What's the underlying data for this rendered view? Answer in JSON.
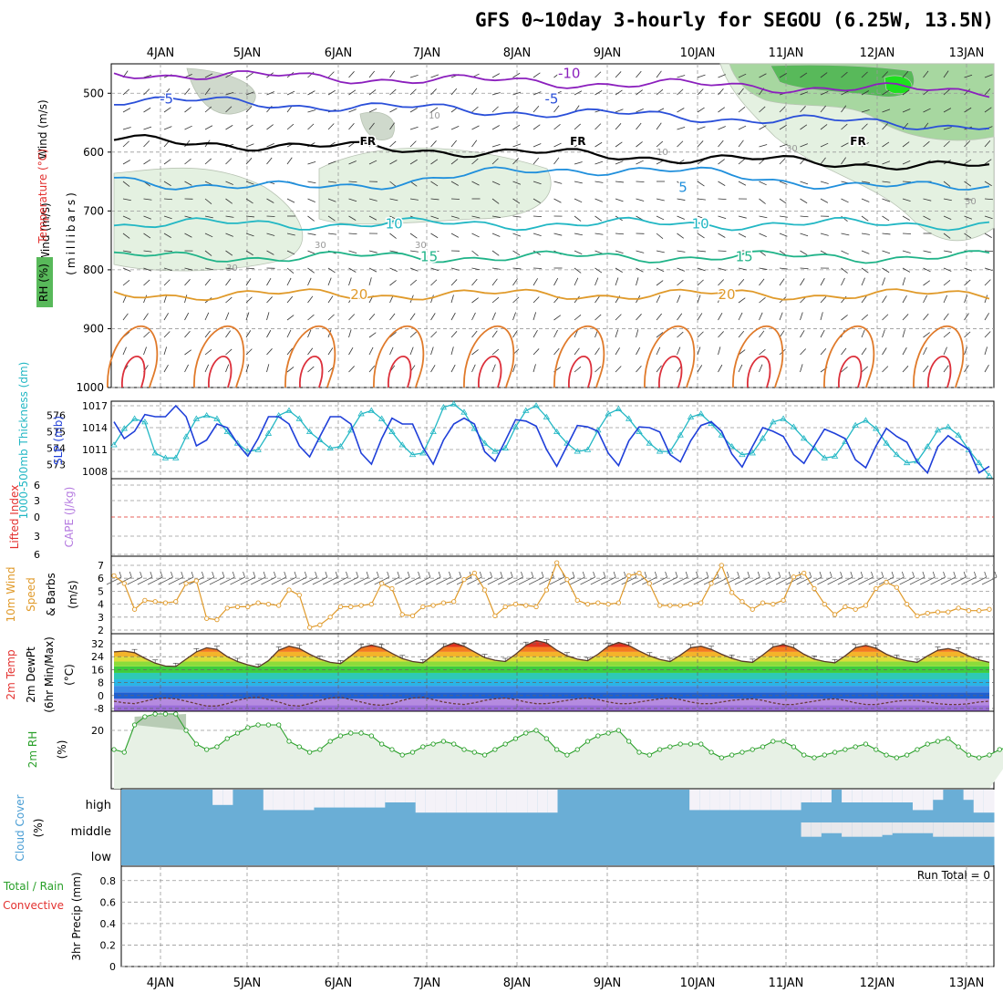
{
  "title": "GFS 0~10day 3-hourly for SEGOU (6.25W, 13.5N)",
  "colors": {
    "temp_purple": "#8b1fbd",
    "temp_blue": "#2a4fd9",
    "temp_sky": "#1f8fdc",
    "temp_cyan": "#22b7c4",
    "temp_teal": "#1fb388",
    "temp_orange": "#e09a2a",
    "temp_dark_orange": "#e07a2a",
    "temp_red": "#dc2f3a",
    "freezing": "#000000",
    "rh_light": "#e4f1e1",
    "rh_mid": "#a7d7a0",
    "rh_dark": "#58b95a",
    "rh_bright": "#1ee01e",
    "slp": "#1f3fd9",
    "thickness": "#22b7c4",
    "wind_speed": "#e09a2a",
    "rh2m": "#2aa02a",
    "cloud": "#6aaed6",
    "cloud_clear": "#f4f2f8",
    "grid": "#999999",
    "lifted_zero": "#e0302a"
  },
  "chart_data": [
    {
      "type": "contour",
      "name": "upper_air",
      "x_ticks": [
        "4JAN",
        "5JAN",
        "6JAN",
        "7JAN",
        "8JAN",
        "9JAN",
        "10JAN",
        "11JAN",
        "12JAN",
        "13JAN"
      ],
      "ylabel_parts": [
        "Wind (m/s)",
        "Temperature (°C)",
        "(millibars)"
      ],
      "rh_legend_label": "RH (%)",
      "y_ticks": [
        500,
        600,
        700,
        800,
        900,
        1000
      ],
      "ylim": [
        450,
        1000
      ],
      "temperature_contours": [
        {
          "label": "-10",
          "level_mb": 466,
          "label_day": 5.2,
          "color": "temp_purple"
        },
        {
          "label": "-5",
          "level_mb": 510,
          "label_day": [
            0.6,
            5.0
          ],
          "color": "temp_blue"
        },
        {
          "label": "FR",
          "level_mb": 580,
          "label_day": [
            2.9,
            5.3,
            8.5
          ],
          "color": "freezing"
        },
        {
          "label": "5",
          "level_mb": 660,
          "label_day": [
            6.5
          ],
          "color": "temp_sky"
        },
        {
          "label": "10",
          "level_mb": 722,
          "label_day": [
            3.2,
            6.7
          ],
          "color": "temp_cyan"
        },
        {
          "label": "15",
          "level_mb": 778,
          "label_day": [
            3.6,
            7.2
          ],
          "color": "temp_teal"
        },
        {
          "label": "20",
          "level_mb": 842,
          "label_day": [
            2.8,
            7.0
          ],
          "color": "temp_orange"
        }
      ],
      "rh_labels": [
        "10",
        "10",
        "30",
        "30",
        "30",
        "30",
        "30"
      ]
    },
    {
      "type": "line",
      "name": "slp_thickness",
      "ylabel": "1000-500mb Thickness (dm)",
      "ylabel2": "SLP (mb)",
      "y_ticks_left": [
        573,
        574,
        575,
        576
      ],
      "y_ticks_right": [
        1008,
        1011,
        1014,
        1017
      ],
      "series": [
        {
          "name": "SLP",
          "unit": "mb",
          "values": [
            1014.8,
            1012.5,
            1013.5,
            1015.8,
            1015.5,
            1015.5,
            1017,
            1015.5,
            1011.5,
            1012.3,
            1014.5,
            1014,
            1011.8,
            1010.1,
            1012.5,
            1015.5,
            1015.5,
            1014.5,
            1011.5,
            1010,
            1012.8,
            1015.5,
            1015.5,
            1014.5,
            1010.5,
            1009,
            1012.5,
            1015.3,
            1014.5,
            1014.5,
            1011.3,
            1009,
            1012.3,
            1014.5,
            1015.3,
            1014.5,
            1010.7,
            1009.4,
            1012.2,
            1015.1,
            1014.9,
            1014.2,
            1011,
            1008.7,
            1011.5,
            1014.3,
            1014.1,
            1013.5,
            1010.5,
            1008.8,
            1012.2,
            1014.1,
            1014,
            1013.4,
            1010.3,
            1009.3,
            1012.2,
            1014.3,
            1014.8,
            1013.5,
            1010.4,
            1008.6,
            1011.4,
            1014,
            1013.5,
            1012.8,
            1010.3,
            1009.1,
            1011.5,
            1013.8,
            1013.2,
            1012.5,
            1009.6,
            1008.5,
            1011.5,
            1013.9,
            1012.8,
            1012,
            1009.3,
            1007.8,
            1011.4,
            1012.9,
            1011.9,
            1011,
            1007.8,
            1008.7
          ]
        },
        {
          "name": "1000-500mb Thickness",
          "unit": "dm",
          "values": [
            574.2,
            575.2,
            575.8,
            575.6,
            573.7,
            573.4,
            573.4,
            574.7,
            575.8,
            576,
            575.8,
            575,
            574.3,
            573.8,
            573.9,
            574.9,
            576,
            576.3,
            575.8,
            575,
            574.5,
            574,
            574.1,
            575.1,
            576.1,
            576.3,
            575.8,
            575,
            574.2,
            573.6,
            573.7,
            575,
            576.5,
            576.7,
            576.2,
            575.2,
            574.3,
            573.8,
            574,
            575.3,
            576.3,
            576.6,
            575.9,
            575,
            574.3,
            573.8,
            573.9,
            575.1,
            576.1,
            576.4,
            575.8,
            575,
            574.3,
            573.8,
            573.8,
            574.8,
            575.9,
            576.1,
            575.5,
            574.8,
            574.1,
            573.6,
            573.7,
            574.6,
            575.6,
            575.8,
            575.3,
            574.6,
            574,
            573.4,
            573.5,
            574.4,
            575.4,
            575.7,
            575.2,
            574.3,
            573.6,
            573.1,
            573.2,
            574.1,
            575.1,
            575.3,
            574.8,
            573.9,
            573.1,
            572.3
          ]
        }
      ]
    },
    {
      "type": "line",
      "name": "cape_li",
      "ylabel_parts": [
        "Lifted Index",
        "CAPE (J/kg)"
      ],
      "y_ticks": [
        "6",
        "3",
        "0",
        "3",
        "6"
      ],
      "values_li": [],
      "values_cape": []
    },
    {
      "type": "line",
      "name": "wind10m",
      "ylabel_parts": [
        "10m Wind",
        "Speed",
        "& Barbs",
        "(m/s)"
      ],
      "y_ticks": [
        2,
        3,
        4,
        5,
        6,
        7
      ],
      "values": [
        6.2,
        5.6,
        3.6,
        4.3,
        4.2,
        4.1,
        4.2,
        5.6,
        5.8,
        2.9,
        2.8,
        3.7,
        3.8,
        3.8,
        4.1,
        4,
        3.9,
        5.1,
        4.7,
        2.2,
        2.4,
        3,
        3.8,
        3.8,
        3.9,
        4,
        5.6,
        5.2,
        3.2,
        3.1,
        3.8,
        3.9,
        4.1,
        4.2,
        5.9,
        6.4,
        5.1,
        3.1,
        3.8,
        4,
        3.9,
        3.8,
        5.1,
        7.2,
        5.9,
        4.3,
        4,
        4.1,
        4,
        4.1,
        6.2,
        6.4,
        5.6,
        3.9,
        3.9,
        3.9,
        4,
        4.1,
        5.6,
        7,
        4.9,
        4.2,
        3.6,
        4.1,
        4,
        4.3,
        6.1,
        6.4,
        5.2,
        4,
        3.2,
        3.8,
        3.6,
        3.9,
        5.2,
        5.7,
        5.3,
        4,
        3.1,
        3.3,
        3.4,
        3.4,
        3.7,
        3.5,
        3.5,
        3.6
      ]
    },
    {
      "type": "area",
      "name": "temp2m",
      "ylabel_parts": [
        "2m Temp",
        "2m DewPt",
        "(6hr Min/Max)",
        "(°C)"
      ],
      "y_ticks": [
        "32",
        "24",
        "16",
        "8",
        "0",
        "-8"
      ],
      "temp_values": [
        27,
        27.5,
        26.5,
        23,
        20,
        18.2,
        18,
        22.5,
        27,
        29.5,
        28.5,
        24,
        21,
        19,
        17.5,
        21.5,
        28,
        30.5,
        29,
        25.5,
        22.5,
        20.5,
        19.7,
        24.5,
        29.5,
        31.2,
        29.5,
        26,
        22.8,
        21,
        20.2,
        25,
        30,
        32.5,
        30.5,
        27,
        23.5,
        21.8,
        21,
        25.5,
        31,
        34,
        32.5,
        28,
        24.5,
        22.5,
        21.5,
        25.5,
        30.5,
        32.8,
        31,
        27.5,
        24.5,
        22.3,
        21,
        25,
        29.5,
        30.5,
        28.5,
        25.5,
        23,
        21.2,
        20.5,
        25,
        30,
        31.5,
        29.5,
        25.5,
        22.5,
        21,
        20.2,
        24.5,
        29.5,
        31,
        29.2,
        25.5,
        23,
        21.5,
        20.5,
        24.5,
        28,
        29,
        27.5,
        24.5,
        22,
        20.5
      ],
      "dewpoint_values": [
        -3.5,
        -4.5,
        -5,
        -3.5,
        -2,
        -1.5,
        -2,
        -3.5,
        -5,
        -6.5,
        -6.5,
        -5,
        -3,
        -1.5,
        -1,
        -2.5,
        -4,
        -6,
        -6.5,
        -5,
        -3,
        -1.5,
        -1,
        -2.5,
        -4,
        -5.5,
        -6,
        -5,
        -3,
        -1.5,
        -1,
        -2.5,
        -4,
        -5,
        -5.5,
        -4.5,
        -3,
        -2,
        -1.5,
        -2.5,
        -4,
        -5,
        -5,
        -4,
        -3,
        -2,
        -1.5,
        -2.5,
        -4,
        -5,
        -5,
        -4,
        -3,
        -2,
        -1.5,
        -2.5,
        -4,
        -5,
        -5,
        -4,
        -3,
        -2.5,
        -2,
        -3,
        -4.5,
        -5.5,
        -5.5,
        -4.5,
        -3.5,
        -2.5,
        -2,
        -3,
        -4.5,
        -5.5,
        -5.5,
        -4.5,
        -3.5,
        -3,
        -3,
        -4,
        -5,
        -5.5,
        -5.5,
        -5,
        -4,
        -3.5
      ]
    },
    {
      "type": "area",
      "name": "rh2m",
      "ylabel": "2m RH",
      "yunit": "(%)",
      "y_ticks": [
        "20"
      ],
      "values": [
        13,
        12,
        22,
        25,
        26,
        26,
        26,
        20,
        15,
        13,
        14,
        17,
        19,
        21,
        22,
        22,
        22,
        16,
        14,
        12,
        13,
        16,
        18,
        19,
        19,
        18,
        15,
        13,
        11,
        12,
        14,
        15,
        16,
        15,
        13,
        12,
        11,
        13,
        15,
        17,
        19,
        20,
        17,
        13,
        11,
        13,
        16,
        18,
        19,
        20,
        16,
        12,
        11,
        13,
        14,
        15,
        15,
        15,
        12,
        10,
        11,
        12,
        13,
        14,
        16,
        16,
        14,
        11,
        10,
        11,
        12,
        13,
        14,
        15,
        13,
        11,
        10,
        11,
        13,
        15,
        16,
        17,
        14,
        11,
        10,
        11,
        13,
        14,
        15
      ]
    },
    {
      "type": "heatmap",
      "name": "cloud_cover",
      "ylabel_parts": [
        "Cloud Cover",
        "(%)"
      ],
      "layers": [
        "high",
        "middle",
        "low"
      ],
      "high_clear_fraction": [
        0,
        0,
        0,
        0,
        0,
        0,
        0,
        0,
        0,
        0.6,
        0.6,
        0,
        0,
        0,
        0.8,
        0.8,
        0.8,
        0.8,
        0.8,
        0.7,
        0.7,
        0.7,
        0.7,
        0.7,
        0.7,
        0.7,
        0.5,
        0.5,
        0.5,
        0.9,
        0.9,
        0.9,
        0.9,
        0.9,
        0.9,
        0.9,
        0.9,
        0.9,
        0.9,
        0.9,
        0.9,
        0.9,
        0.9,
        0,
        0,
        0,
        0,
        0,
        0,
        0,
        0,
        0,
        0,
        0,
        0,
        0,
        0.8,
        0.8,
        0.8,
        0.8,
        0.8,
        0.8,
        0.8,
        0.8,
        0.8,
        0.8,
        0.8,
        0.5,
        0.5,
        0.5,
        0,
        0.5,
        0.5,
        0.5,
        0.5,
        0.5,
        0.5,
        0.5,
        0.8,
        0.8,
        0.4,
        0,
        0,
        0.4,
        0.9,
        0.9
      ],
      "middle_clear_fraction": [
        0,
        0,
        0,
        0,
        0,
        0,
        0,
        0,
        0,
        0,
        0,
        0,
        0,
        0,
        0,
        0,
        0,
        0,
        0,
        0,
        0,
        0,
        0,
        0,
        0,
        0,
        0,
        0,
        0,
        0,
        0,
        0,
        0,
        0,
        0,
        0,
        0,
        0,
        0,
        0,
        0,
        0,
        0,
        0,
        0,
        0,
        0,
        0,
        0,
        0,
        0,
        0,
        0,
        0,
        0,
        0,
        0,
        0,
        0,
        0,
        0,
        0,
        0,
        0,
        0,
        0,
        0,
        0.8,
        0.8,
        0.6,
        0.6,
        0.8,
        0.8,
        0.8,
        0.8,
        0.7,
        0.6,
        0.6,
        0.6,
        0.6,
        0.8,
        0.8,
        0.8,
        0.8,
        0.8,
        0.8
      ]
    },
    {
      "type": "bar",
      "name": "precip",
      "ylabel": "3hr Precip (mm)",
      "ylabel_left": "Total / Rain",
      "ylabel_left2": "Convective",
      "y_ticks": [
        "0.8",
        "0.6",
        "0.4",
        "0.2",
        "0"
      ],
      "run_total_label": "Run Total = 0",
      "values": []
    }
  ]
}
